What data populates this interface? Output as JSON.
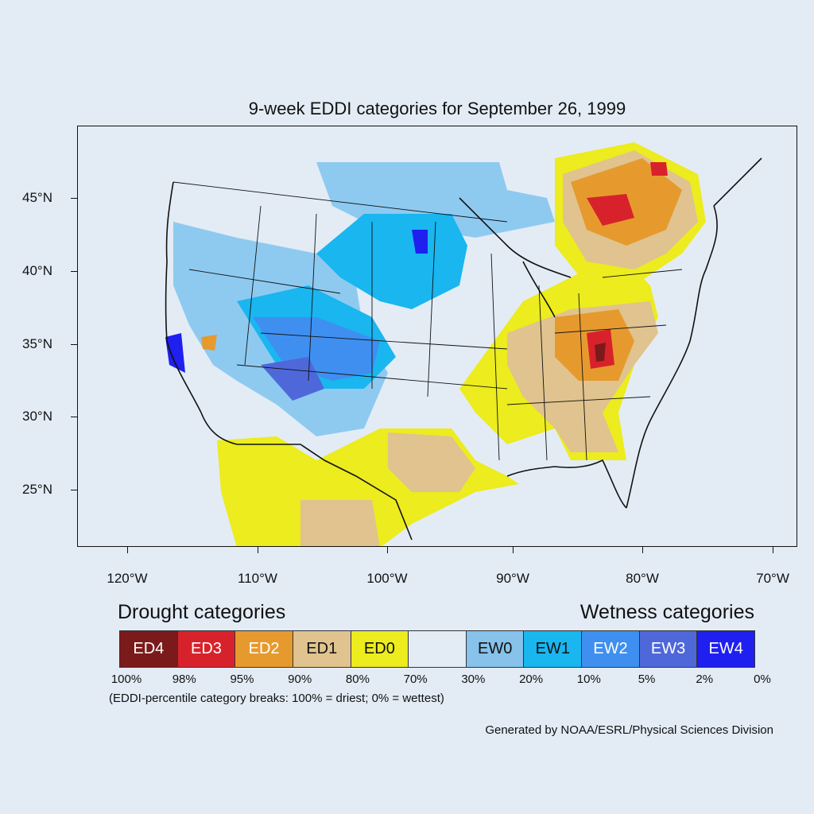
{
  "title": "9-week EDDI categories for September 26, 1999",
  "axes": {
    "lat_labels": [
      "45°N",
      "40°N",
      "35°N",
      "30°N",
      "25°N"
    ],
    "lon_labels": [
      "120°W",
      "110°W",
      "100°W",
      "90°W",
      "80°W",
      "70°W"
    ]
  },
  "legend": {
    "drought_heading": "Drought categories",
    "wetness_heading": "Wetness categories",
    "categories": [
      {
        "label": "ED4",
        "color": "#7b1a1a",
        "text_color": "#ffffff"
      },
      {
        "label": "ED3",
        "color": "#d8222b",
        "text_color": "#ffffff"
      },
      {
        "label": "ED2",
        "color": "#e69a2e",
        "text_color": "#ffffff"
      },
      {
        "label": "ED1",
        "color": "#e0c38e",
        "text_color": "#111111"
      },
      {
        "label": "ED0",
        "color": "#ecec1e",
        "text_color": "#111111"
      },
      {
        "label": "",
        "color": "#e3ecf5",
        "text_color": "#111111"
      },
      {
        "label": "EW0",
        "color": "#86c2ea",
        "text_color": "#111111"
      },
      {
        "label": "EW1",
        "color": "#19b6f0",
        "text_color": "#111111"
      },
      {
        "label": "EW2",
        "color": "#3f8ff0",
        "text_color": "#ffffff"
      },
      {
        "label": "EW3",
        "color": "#4e68da",
        "text_color": "#ffffff"
      },
      {
        "label": "EW4",
        "color": "#1f1ff0",
        "text_color": "#ffffff"
      }
    ],
    "percentiles": [
      "100%",
      "98%",
      "95%",
      "90%",
      "80%",
      "70%",
      "30%",
      "20%",
      "10%",
      "5%",
      "2%",
      "0%"
    ],
    "note": "(EDDI-percentile category breaks: 100% = driest; 0% = wettest)"
  },
  "credit": "Generated by NOAA/ESRL/Physical Sciences Division"
}
